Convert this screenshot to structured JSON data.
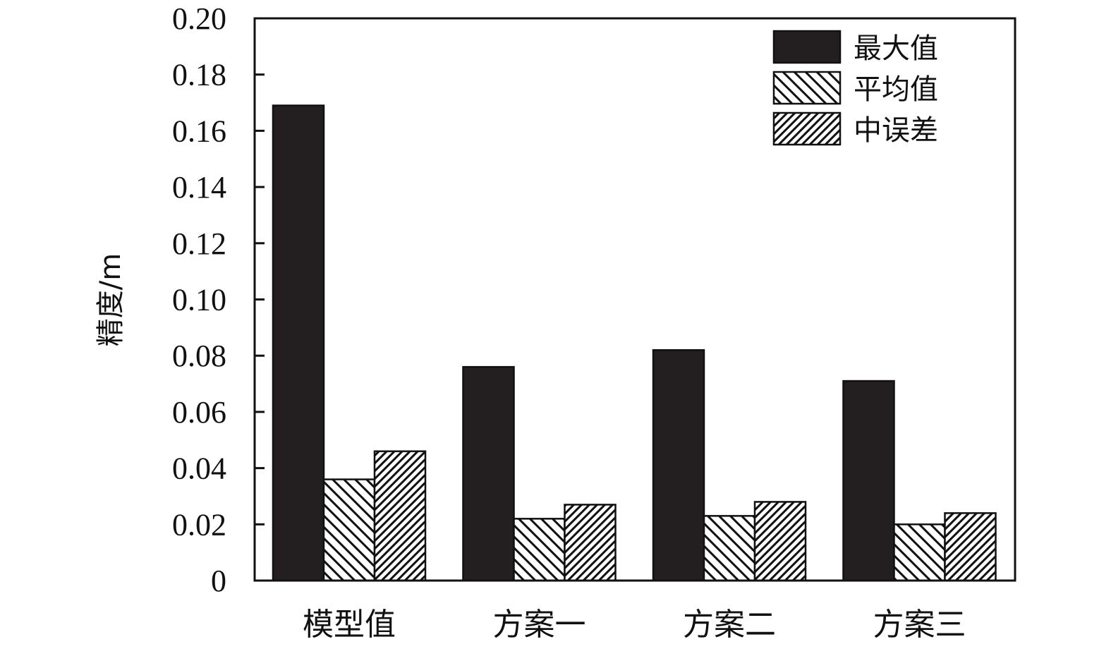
{
  "chart_data": {
    "type": "bar",
    "title": "",
    "xlabel": "",
    "ylabel": "精度/m",
    "ylim": [
      0,
      0.2
    ],
    "yticks": [
      "0",
      "0.02",
      "0.04",
      "0.06",
      "0.08",
      "0.10",
      "0.12",
      "0.14",
      "0.16",
      "0.18",
      "0.20"
    ],
    "categories": [
      "模型值",
      "方案一",
      "方案二",
      "方案三"
    ],
    "series": [
      {
        "name": "最大值",
        "pattern": "solid",
        "values": [
          0.169,
          0.076,
          0.082,
          0.071
        ]
      },
      {
        "name": "平均值",
        "pattern": "backslash",
        "values": [
          0.036,
          0.022,
          0.023,
          0.02
        ]
      },
      {
        "name": "中误差",
        "pattern": "slash",
        "values": [
          0.046,
          0.027,
          0.028,
          0.024
        ]
      }
    ],
    "legend_position": "top-right",
    "grid": false,
    "colors": {
      "bar_fill": "#231f20",
      "stroke": "#111111",
      "background": "#ffffff"
    }
  }
}
